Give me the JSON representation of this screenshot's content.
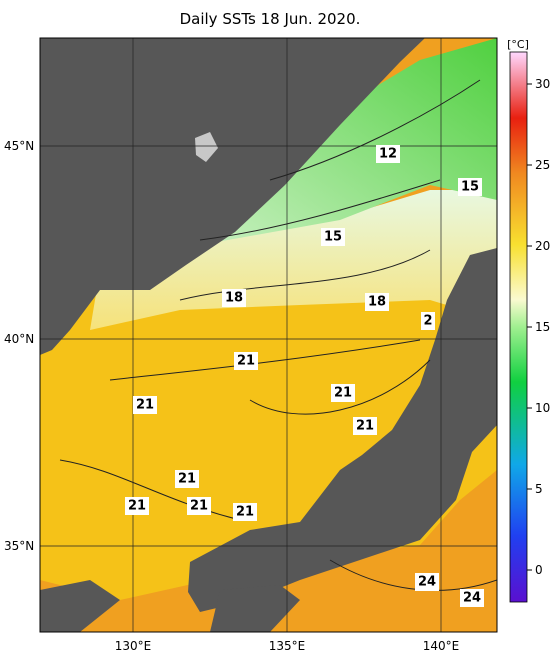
{
  "title": "Daily SSTs 18 Jun. 2020.",
  "lat_labels": [
    "45°N",
    "40°N",
    "35°N"
  ],
  "lon_labels": [
    "130°E",
    "135°E",
    "140°E"
  ],
  "colorbar": {
    "unit": "[°C]",
    "ticks": [
      0,
      5,
      10,
      15,
      20,
      25,
      30
    ]
  },
  "contour_labels": [
    "12",
    "15",
    "15",
    "18",
    "18",
    "2",
    "21",
    "21",
    "21",
    "21",
    "21",
    "21",
    "21",
    "21",
    "24",
    "24"
  ]
}
